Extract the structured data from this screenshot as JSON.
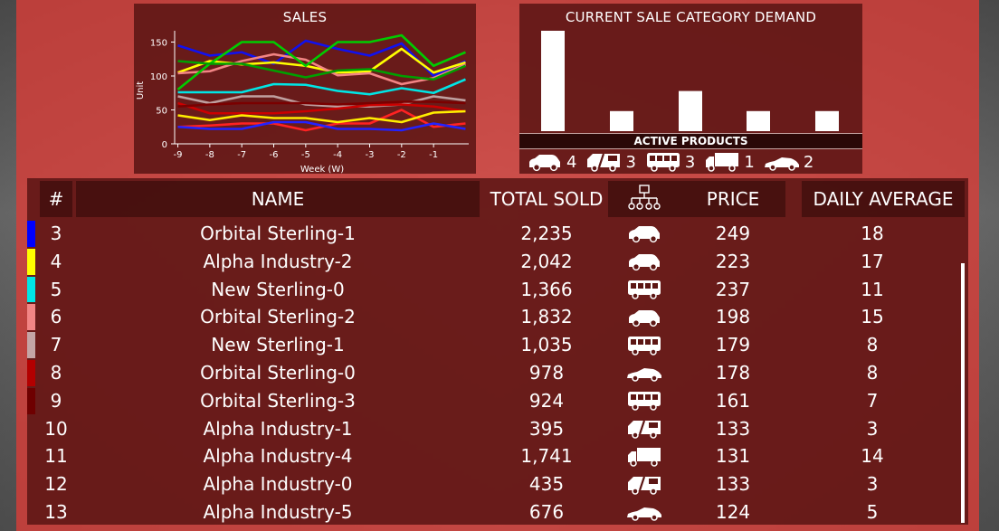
{
  "sales_chart": {
    "title": "SALES",
    "ylabel": "Unit",
    "xlabel": "Week (W)"
  },
  "demand_chart": {
    "title": "CURRENT SALE CATEGORY DEMAND"
  },
  "active_products": {
    "label": "ACTIVE PRODUCTS",
    "items": [
      {
        "icon": "hatchback-icon",
        "count": "4"
      },
      {
        "icon": "van-icon",
        "count": "3"
      },
      {
        "icon": "bus-icon",
        "count": "3"
      },
      {
        "icon": "truck-icon",
        "count": "1"
      },
      {
        "icon": "sports-car-icon",
        "count": "2"
      }
    ]
  },
  "chart_data": [
    {
      "type": "line",
      "title": "SALES",
      "xlabel": "Week (W)",
      "ylabel": "Unit",
      "x": [
        -9,
        -8,
        -7,
        -6,
        -5,
        -4,
        -3,
        -2,
        -1,
        0
      ],
      "xticks": [
        "-9",
        "-8",
        "-7",
        "-6",
        "-5",
        "-4",
        "-3",
        "-2",
        "-1"
      ],
      "ylim": [
        0,
        160
      ],
      "yticks": [
        0,
        50,
        100,
        150
      ],
      "grid": false,
      "series": [
        {
          "color": "#1111ee",
          "values": [
            145,
            130,
            135,
            118,
            152,
            140,
            130,
            148,
            100,
            122
          ]
        },
        {
          "color": "#ffff00",
          "values": [
            105,
            122,
            117,
            120,
            115,
            105,
            107,
            140,
            105,
            120
          ]
        },
        {
          "color": "#00e5e5",
          "values": [
            76,
            76,
            76,
            88,
            87,
            78,
            73,
            82,
            75,
            95
          ]
        },
        {
          "color": "#f28585",
          "values": [
            104,
            107,
            122,
            132,
            124,
            101,
            104,
            88,
            97,
            117
          ]
        },
        {
          "color": "#bfa0a0",
          "values": [
            70,
            60,
            70,
            70,
            58,
            55,
            55,
            58,
            70,
            64
          ]
        },
        {
          "color": "#cc0000",
          "values": [
            60,
            45,
            45,
            45,
            48,
            52,
            57,
            58,
            55,
            48
          ]
        },
        {
          "color": "#7a0000",
          "values": [
            55,
            58,
            60,
            60,
            60,
            58,
            60,
            62,
            62,
            60
          ]
        },
        {
          "color": "#00cc00",
          "values": [
            80,
            118,
            150,
            150,
            115,
            150,
            150,
            160,
            115,
            135
          ]
        },
        {
          "color": "#00a000",
          "values": [
            122,
            118,
            118,
            108,
            98,
            108,
            110,
            100,
            95,
            115
          ]
        },
        {
          "color": "#ff2222",
          "values": [
            25,
            27,
            30,
            30,
            20,
            30,
            30,
            50,
            25,
            30
          ]
        },
        {
          "color": "#ffee00",
          "values": [
            42,
            35,
            42,
            38,
            38,
            32,
            38,
            32,
            46,
            48
          ]
        },
        {
          "color": "#2222ff",
          "values": [
            25,
            22,
            22,
            32,
            32,
            22,
            22,
            20,
            30,
            22
          ]
        }
      ]
    },
    {
      "type": "bar",
      "title": "CURRENT SALE CATEGORY DEMAND",
      "categories": [
        "hatchback",
        "van",
        "bus",
        "truck",
        "sports-car"
      ],
      "values": [
        100,
        20,
        40,
        20,
        20
      ],
      "ylim": [
        0,
        100
      ]
    }
  ],
  "table": {
    "headers": {
      "rank": "#",
      "name": "NAME",
      "total_sold": "TOTAL SOLD",
      "category_icon": "hierarchy-icon",
      "price": "PRICE",
      "daily_average": "DAILY AVERAGE"
    },
    "rows": [
      {
        "color": "#0000ff",
        "rank": "3",
        "name": "Orbital Sterling-1",
        "total_sold": "2,235",
        "icon": "hatchback-icon",
        "price": "249",
        "daily_average": "18"
      },
      {
        "color": "#ffff00",
        "rank": "4",
        "name": "Alpha Industry-2",
        "total_sold": "2,042",
        "icon": "hatchback-icon",
        "price": "223",
        "daily_average": "17"
      },
      {
        "color": "#00e5e5",
        "rank": "5",
        "name": "New Sterling-0",
        "total_sold": "1,366",
        "icon": "bus-icon",
        "price": "237",
        "daily_average": "11"
      },
      {
        "color": "#f28585",
        "rank": "6",
        "name": "Orbital Sterling-2",
        "total_sold": "1,832",
        "icon": "hatchback-icon",
        "price": "198",
        "daily_average": "15"
      },
      {
        "color": "#c4a5a5",
        "rank": "7",
        "name": "New Sterling-1",
        "total_sold": "1,035",
        "icon": "bus-icon",
        "price": "179",
        "daily_average": "8"
      },
      {
        "color": "#b30000",
        "rank": "8",
        "name": "Orbital Sterling-0",
        "total_sold": "978",
        "icon": "sports-car-icon",
        "price": "178",
        "daily_average": "8"
      },
      {
        "color": "#6e0000",
        "rank": "9",
        "name": "Orbital Sterling-3",
        "total_sold": "924",
        "icon": "bus-icon",
        "price": "161",
        "daily_average": "7"
      },
      {
        "color": "",
        "rank": "10",
        "name": "Alpha Industry-1",
        "total_sold": "395",
        "icon": "van-icon",
        "price": "133",
        "daily_average": "3"
      },
      {
        "color": "",
        "rank": "11",
        "name": "Alpha Industry-4",
        "total_sold": "1,741",
        "icon": "truck-icon",
        "price": "131",
        "daily_average": "14"
      },
      {
        "color": "",
        "rank": "12",
        "name": "Alpha Industry-0",
        "total_sold": "435",
        "icon": "van-icon",
        "price": "133",
        "daily_average": "3"
      },
      {
        "color": "",
        "rank": "13",
        "name": "Alpha Industry-5",
        "total_sold": "676",
        "icon": "sports-car-icon",
        "price": "124",
        "daily_average": "5"
      }
    ]
  }
}
